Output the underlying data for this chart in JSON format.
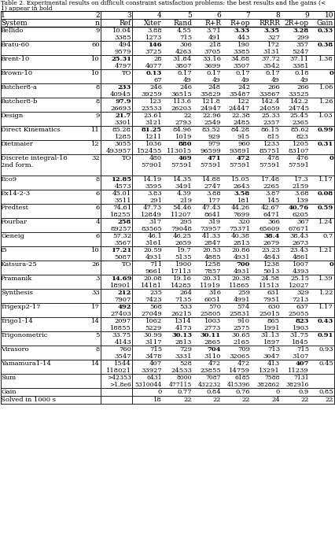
{
  "title": "Table 2. Experimental results on difficult constraint satisfaction problems: the best results and the gains (< 1) appear in bold",
  "col_headers_row1": [
    "1",
    "2",
    "3",
    "4",
    "5",
    "6",
    "7",
    "8",
    "9",
    "10"
  ],
  "col_headers_row2": [
    "System",
    "n",
    "Ref",
    "Xiter",
    "Rand",
    "R+R",
    "R+op",
    "RRRR",
    "2R+op",
    "Gain"
  ],
  "rows": [
    {
      "name": "Bellido",
      "n": "9",
      "r1": [
        "10.04",
        "3.88",
        "4.55",
        "3.71",
        "3.33",
        "3.35",
        "3.28",
        "0.33"
      ],
      "r2": [
        "3385",
        "1273",
        "715",
        "491",
        "443",
        "327",
        "299",
        ""
      ],
      "b1": [
        false,
        false,
        false,
        false,
        true,
        true,
        true,
        true
      ],
      "b2": [
        false,
        false,
        false,
        false,
        false,
        false,
        false,
        false
      ]
    },
    {
      "name": "Bratu-60",
      "n": "60",
      "r1": [
        "494",
        "146",
        "306",
        "218",
        "190",
        "172",
        "357",
        "0.38"
      ],
      "r2": [
        "9579",
        "3725",
        "4263",
        "3705",
        "3385",
        "3131",
        "5247",
        ""
      ],
      "b1": [
        false,
        true,
        false,
        false,
        false,
        false,
        false,
        true
      ],
      "b2": [
        false,
        false,
        false,
        false,
        false,
        false,
        false,
        false
      ]
    },
    {
      "name": "Brent-10",
      "n": "10",
      "r1": [
        "25.31",
        "28",
        "31.84",
        "33.16",
        "34.88",
        "37.72",
        "37.11",
        "1.38"
      ],
      "r2": [
        "4797",
        "4077",
        "3807",
        "3699",
        "3507",
        "3542",
        "3381",
        ""
      ],
      "b1": [
        true,
        false,
        false,
        false,
        false,
        false,
        false,
        false
      ],
      "b2": [
        false,
        false,
        false,
        false,
        false,
        false,
        false,
        false
      ]
    },
    {
      "name": "Brown-10",
      "n": "10",
      "r1": [
        "TO",
        "0.13",
        "0.17",
        "0.17",
        "0.17",
        "0.17",
        "0.18",
        "0"
      ],
      "r2": [
        "",
        "67",
        "49",
        "49",
        "49",
        "49",
        "49",
        ""
      ],
      "b1": [
        false,
        true,
        false,
        false,
        false,
        false,
        false,
        true
      ],
      "b2": [
        false,
        false,
        false,
        false,
        false,
        false,
        false,
        false
      ]
    },
    {
      "name": "Butcher8-a",
      "n": "8",
      "r1": [
        "233",
        "246",
        "246",
        "248",
        "242",
        "266",
        "266",
        "1.06"
      ],
      "r2": [
        "40945",
        "39259",
        "36515",
        "35829",
        "35487",
        "33867",
        "33525",
        ""
      ],
      "b1": [
        true,
        false,
        false,
        false,
        false,
        false,
        false,
        false
      ],
      "b2": [
        false,
        false,
        false,
        false,
        false,
        false,
        false,
        false
      ]
    },
    {
      "name": "Butcher8-b",
      "n": "8",
      "r1": [
        "97.9",
        "123",
        "113.6",
        "121.8",
        "122",
        "142.4",
        "142.2",
        "1.26"
      ],
      "r2": [
        "26693",
        "23533",
        "26203",
        "24947",
        "24447",
        "24059",
        "24745",
        ""
      ],
      "b1": [
        true,
        false,
        false,
        false,
        false,
        false,
        false,
        false
      ],
      "b2": [
        false,
        false,
        false,
        false,
        false,
        false,
        false,
        false
      ]
    },
    {
      "name": "Design",
      "n": "9",
      "r1": [
        "21.7",
        "23.61",
        "22",
        "22.96",
        "22.38",
        "25.33",
        "25.45",
        "1.03"
      ],
      "r2": [
        "3301",
        "3121",
        "2793",
        "2549",
        "2485",
        "2357",
        "2365",
        ""
      ],
      "b1": [
        true,
        false,
        false,
        false,
        false,
        false,
        false,
        false
      ],
      "b2": [
        false,
        false,
        false,
        false,
        false,
        false,
        false,
        false
      ]
    },
    {
      "name": "Direct Kinematics",
      "n": "11",
      "r1": [
        "85.28",
        "81.25",
        "84.96",
        "83.52",
        "84.28",
        "86.15",
        "85.62",
        "0.99"
      ],
      "r2": [
        "1285",
        "1211",
        "1019",
        "929",
        "915",
        "815",
        "823",
        ""
      ],
      "b1": [
        false,
        true,
        false,
        false,
        false,
        false,
        false,
        true
      ],
      "b2": [
        false,
        false,
        false,
        false,
        false,
        false,
        false,
        false
      ]
    },
    {
      "name": "Dietmaier",
      "n": "12",
      "r1": [
        "3055",
        "1036",
        "880",
        "979",
        "960",
        "1233",
        "1205",
        "0.31"
      ],
      "r2": [
        "493957",
        "152455",
        "113015",
        "96599",
        "93891",
        "85751",
        "83107",
        ""
      ],
      "b1": [
        false,
        false,
        true,
        false,
        false,
        false,
        false,
        true
      ],
      "b2": [
        false,
        false,
        false,
        false,
        false,
        false,
        false,
        false
      ]
    },
    {
      "name": "Discrete integral-16",
      "name2": "2nd form.",
      "n": "32",
      "r1": [
        "TO",
        "480",
        "469",
        "471",
        "472",
        "478",
        "476",
        "0"
      ],
      "r2": [
        "",
        "57901",
        "57591",
        "57591",
        "57591",
        "57591",
        "57591",
        ""
      ],
      "b1": [
        false,
        false,
        true,
        true,
        true,
        false,
        false,
        true
      ],
      "b2": [
        false,
        false,
        false,
        false,
        false,
        false,
        false,
        false
      ],
      "extra_line": true
    },
    {
      "name": "Eco9",
      "n": "8",
      "r1": [
        "12.85",
        "14.19",
        "14.35",
        "14.88",
        "15.05",
        "17.48",
        "17.3",
        "1.17"
      ],
      "r2": [
        "4573",
        "3595",
        "3491",
        "2747",
        "2643",
        "2265",
        "2159",
        ""
      ],
      "b1": [
        true,
        false,
        false,
        false,
        false,
        false,
        false,
        false
      ],
      "b2": [
        false,
        false,
        false,
        false,
        false,
        false,
        false,
        false
      ]
    },
    {
      "name": "Ex14-2-3",
      "n": "6",
      "r1": [
        "45.01",
        "3.83",
        "4.39",
        "3.88",
        "3.58",
        "3.87",
        "3.68",
        "0.08"
      ],
      "r2": [
        "3511",
        "291",
        "219",
        "177",
        "181",
        "145",
        "139",
        ""
      ],
      "b1": [
        false,
        false,
        false,
        false,
        true,
        false,
        false,
        true
      ],
      "b2": [
        false,
        false,
        false,
        false,
        false,
        false,
        false,
        false
      ]
    },
    {
      "name": "Fredtest",
      "n": "6",
      "r1": [
        "74.61",
        "47.73",
        "54.46",
        "47.43",
        "44.26",
        "42.67",
        "40.76",
        "0.59"
      ],
      "r2": [
        "18255",
        "12849",
        "11207",
        "8641",
        "7699",
        "6471",
        "6205",
        ""
      ],
      "b1": [
        false,
        false,
        false,
        false,
        false,
        false,
        true,
        true
      ],
      "b2": [
        false,
        false,
        false,
        false,
        false,
        false,
        false,
        false
      ]
    },
    {
      "name": "Fourbar",
      "n": "4",
      "r1": [
        "258",
        "317",
        "295",
        "319",
        "320",
        "366",
        "367",
        "1.24"
      ],
      "r2": [
        "89257",
        "83565",
        "79048",
        "73957",
        "75371",
        "65609",
        "67671",
        ""
      ],
      "b1": [
        true,
        false,
        false,
        false,
        false,
        false,
        false,
        false
      ],
      "b2": [
        false,
        false,
        false,
        false,
        false,
        false,
        false,
        false
      ]
    },
    {
      "name": "Geneig",
      "n": "6",
      "r1": [
        "57.32",
        "46.1",
        "46.25",
        "41.33",
        "40.38",
        "38.4",
        "38.43",
        "0.7"
      ],
      "r2": [
        "3567",
        "3161",
        "2659",
        "2847",
        "2813",
        "2679",
        "2673",
        ""
      ],
      "b1": [
        false,
        false,
        false,
        false,
        false,
        true,
        false,
        false
      ],
      "b2": [
        false,
        false,
        false,
        false,
        false,
        false,
        false,
        false
      ]
    },
    {
      "name": "I5",
      "n": "10",
      "r1": [
        "17.21",
        "20.59",
        "19.7",
        "20.53",
        "20.86",
        "23.23",
        "23.43",
        "1.21"
      ],
      "r2": [
        "5087",
        "4931",
        "5135",
        "4885",
        "4931",
        "4843",
        "4861",
        ""
      ],
      "b1": [
        true,
        false,
        false,
        false,
        false,
        false,
        false,
        false
      ],
      "b2": [
        false,
        false,
        false,
        false,
        false,
        false,
        false,
        false
      ]
    },
    {
      "name": "Katsura-25",
      "n": "26",
      "r1": [
        "TO",
        "711",
        "1900",
        "1258",
        "700",
        "1238",
        "1007",
        "0"
      ],
      "r2": [
        "",
        "9661",
        "17113",
        "7857",
        "4931",
        "5013",
        "4393",
        ""
      ],
      "b1": [
        false,
        false,
        false,
        false,
        true,
        false,
        false,
        true
      ],
      "b2": [
        false,
        false,
        false,
        false,
        false,
        false,
        false,
        false
      ]
    },
    {
      "name": "Pramanik",
      "n": "3",
      "r1": [
        "14.69",
        "20.08",
        "19.16",
        "20.31",
        "20.38",
        "24.58",
        "25.15",
        "1.39"
      ],
      "r2": [
        "18901",
        "14181",
        "14285",
        "11919",
        "11865",
        "11513",
        "12027",
        ""
      ],
      "b1": [
        true,
        false,
        false,
        false,
        false,
        false,
        false,
        false
      ],
      "b2": [
        false,
        false,
        false,
        false,
        false,
        false,
        false,
        false
      ]
    },
    {
      "name": "Synthesis",
      "n": "33",
      "r1": [
        "212",
        "235",
        "264",
        "316",
        "259",
        "631",
        "329",
        "1.22"
      ],
      "r2": [
        "7907",
        "7423",
        "7135",
        "6051",
        "4991",
        "7951",
        "7213",
        ""
      ],
      "b1": [
        true,
        false,
        false,
        false,
        false,
        false,
        false,
        false
      ],
      "b2": [
        false,
        false,
        false,
        false,
        false,
        false,
        false,
        false
      ]
    },
    {
      "name": "Trigexp2-17",
      "n": "17",
      "r1": [
        "492",
        "568",
        "533",
        "570",
        "574",
        "630",
        "637",
        "1.17"
      ],
      "r2": [
        "27403",
        "27049",
        "26215",
        "25805",
        "25831",
        "25015",
        "25055",
        ""
      ],
      "b1": [
        true,
        false,
        false,
        false,
        false,
        false,
        false,
        false
      ],
      "b2": [
        false,
        false,
        false,
        false,
        false,
        false,
        false,
        false
      ]
    },
    {
      "name": "Trigo1-14",
      "n": "14",
      "r1": [
        "2097",
        "1062",
        "1314",
        "1003",
        "910",
        "865",
        "823",
        "0.43"
      ],
      "r2": [
        "18855",
        "5229",
        "4173",
        "2773",
        "2575",
        "1991",
        "1903",
        ""
      ],
      "b1": [
        false,
        false,
        false,
        false,
        false,
        false,
        true,
        true
      ],
      "b2": [
        false,
        false,
        false,
        false,
        false,
        false,
        false,
        false
      ]
    },
    {
      "name": "Trigonometric",
      "n": "5",
      "r1": [
        "33.75",
        "30.99",
        "30.13",
        "30.11",
        "30.65",
        "31.13",
        "31.75",
        "0.91"
      ],
      "r2": [
        "4143",
        "3117",
        "2813",
        "2865",
        "2165",
        "1897",
        "1845",
        ""
      ],
      "b1": [
        false,
        false,
        true,
        true,
        false,
        false,
        false,
        true
      ],
      "b2": [
        false,
        false,
        false,
        false,
        false,
        false,
        false,
        false
      ]
    },
    {
      "name": "Virasoro",
      "n": "8",
      "r1": [
        "760",
        "715",
        "729",
        "704",
        "709",
        "713",
        "715",
        "0.93"
      ],
      "r2": [
        "3547",
        "3478",
        "3331",
        "3110",
        "32065",
        "3047",
        "3107",
        ""
      ],
      "b1": [
        false,
        false,
        false,
        true,
        false,
        false,
        false,
        false
      ],
      "b2": [
        false,
        false,
        false,
        false,
        false,
        false,
        false,
        false
      ]
    },
    {
      "name": "Yamamura1-14",
      "n": "14",
      "r1": [
        "1544",
        "407",
        "528",
        "472",
        "472",
        "413",
        "407",
        "0.45"
      ],
      "r2": [
        "118021",
        "33927",
        "24533",
        "23855",
        "14759",
        "13291",
        "11239",
        ""
      ],
      "b1": [
        false,
        false,
        false,
        false,
        false,
        false,
        true,
        false
      ],
      "b2": [
        false,
        false,
        false,
        false,
        false,
        false,
        false,
        false
      ]
    }
  ],
  "sum_r1": [
    ">42353",
    "6431",
    "8000",
    "7087",
    "6185",
    "7588",
    "7131"
  ],
  "sum_r2": [
    ">1.8e6",
    "5310044",
    "477115",
    "432232",
    "415396",
    "382862",
    "382916"
  ],
  "gain_row": [
    "",
    "0",
    "0.77",
    "0.84",
    "0.76",
    "0",
    "0.9",
    "0.85"
  ],
  "solved_row": [
    "",
    "18",
    "22",
    "22",
    "22",
    "24",
    "22",
    "22"
  ],
  "fs_title": 5.5,
  "fs_data": 6.0,
  "fs_header": 6.5
}
